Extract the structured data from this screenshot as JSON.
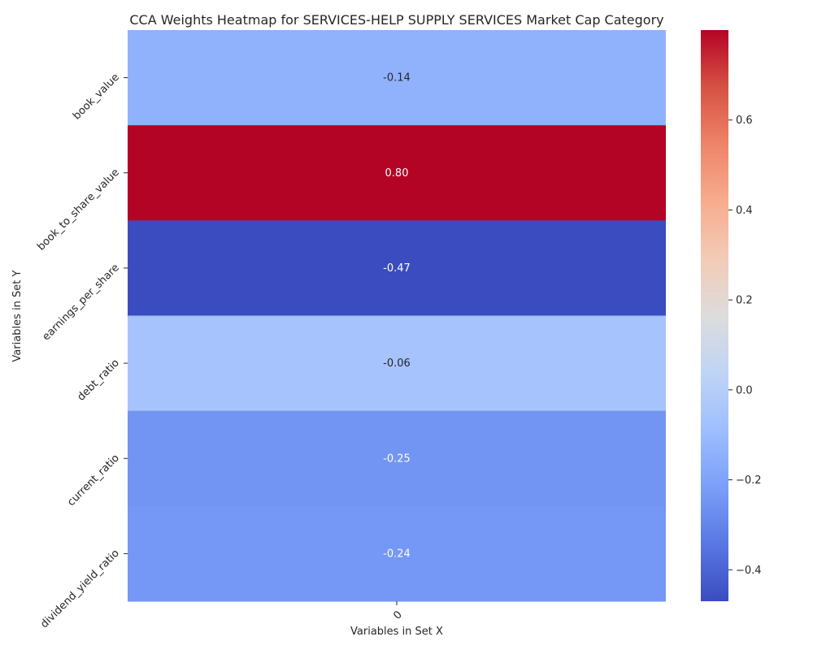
{
  "chart_data": {
    "type": "heatmap",
    "title": "CCA Weights Heatmap for SERVICES-HELP SUPPLY SERVICES Market Cap Category",
    "xlabel": "Variables in Set X",
    "ylabel": "Variables in Set Y",
    "x_categories": [
      "0"
    ],
    "y_categories": [
      "book_value",
      "book_to_share_value",
      "earnings_per_share",
      "debt_ratio",
      "current_ratio",
      "dividend_yield_ratio"
    ],
    "values": [
      -0.14,
      0.8,
      -0.47,
      -0.06,
      -0.25,
      -0.24
    ],
    "value_labels": [
      "-0.14",
      "0.80",
      "-0.47",
      "-0.06",
      "-0.25",
      "-0.24"
    ],
    "colormap": "coolwarm",
    "vmin": -0.47,
    "vmax": 0.8,
    "colorbar_ticks": [
      0.6,
      0.4,
      0.2,
      0.0,
      -0.2,
      -0.4
    ],
    "colorbar_tick_labels": [
      "0.6",
      "0.4",
      "0.2",
      "0.0",
      "−0.2",
      "−0.4"
    ]
  }
}
